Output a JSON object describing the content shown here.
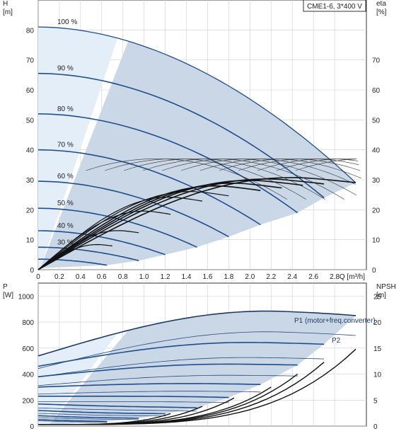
{
  "colors": {
    "curve": "#1f4e8c",
    "curve_thin": "#1e2f4a",
    "region": "#c9d7e6",
    "region_light": "#e4eef8",
    "grid": "#cfcfcf",
    "axis": "#333333"
  },
  "chart_data": [
    {
      "type": "line",
      "title": "CME1-6, 3*400 V",
      "ylabel_left": "H",
      "ylabel_left_unit": "[m]",
      "ylabel_right": "eta",
      "ylabel_right_unit": "[%]",
      "xlabel": "Q [m³/h]",
      "xlim": [
        0,
        3.1
      ],
      "ylim": [
        0,
        90
      ],
      "x_ticks": [
        "0",
        "0.2",
        "0.4",
        "0.6",
        "0.8",
        "1.0",
        "1.2",
        "1.4",
        "1.6",
        "1.8",
        "2.0",
        "2.2",
        "2.4",
        "2.6",
        "2.8"
      ],
      "y_ticks_left": [
        "0",
        "10",
        "20",
        "30",
        "40",
        "50",
        "60",
        "70",
        "80"
      ],
      "y_ticks_right": [
        "0",
        "10",
        "20",
        "30",
        "40",
        "50",
        "60",
        "70"
      ],
      "grid": true,
      "speed_curves": [
        {
          "name": "100 %",
          "h0": 81,
          "qmax": 3.0,
          "hend": 29
        },
        {
          "name": "90 %",
          "h0": 65.5,
          "qmax": 2.7,
          "hend": 24
        },
        {
          "name": "80 %",
          "h0": 52,
          "qmax": 2.45,
          "hend": 19
        },
        {
          "name": "70 %",
          "h0": 40,
          "qmax": 2.1,
          "hend": 15
        },
        {
          "name": "60 %",
          "h0": 29.5,
          "qmax": 1.8,
          "hend": 11
        },
        {
          "name": "50 %",
          "h0": 20.5,
          "qmax": 1.5,
          "hend": 7.5
        },
        {
          "name": "40 %",
          "h0": 13,
          "qmax": 1.2,
          "hend": 5
        },
        {
          "name": "30 %",
          "h0": 7.5,
          "qmax": 0.95,
          "hend": 3
        },
        {
          "name": "",
          "h0": 3.5,
          "qmax": 0.65,
          "hend": 1.5
        }
      ],
      "efficiency_curves": [
        {
          "qmax": 3.0,
          "peak": 33
        },
        {
          "qmax": 2.7,
          "peak": 32.5
        },
        {
          "qmax": 2.5,
          "peak": 32
        },
        {
          "qmax": 2.3,
          "peak": 31
        },
        {
          "qmax": 2.1,
          "peak": 30
        },
        {
          "qmax": 1.8,
          "peak": 28
        },
        {
          "qmax": 1.55,
          "peak": 26
        },
        {
          "qmax": 1.25,
          "peak": 21
        },
        {
          "qmax": 0.95,
          "peak": 14
        },
        {
          "qmax": 0.7,
          "peak": 9
        }
      ],
      "efficiency_envelope_peak": 37
    },
    {
      "type": "line",
      "ylabel_left": "P",
      "ylabel_left_unit": "[W]",
      "ylabel_right": "NPSH",
      "ylabel_right_unit": "[m]",
      "xlim": [
        0,
        3.1
      ],
      "ylim": [
        0,
        1100
      ],
      "ylim_right": [
        0,
        27.5
      ],
      "y_ticks_left": [
        "0",
        "200",
        "400",
        "600",
        "800",
        "1000"
      ],
      "y_ticks_right": [
        "0",
        "5",
        "10",
        "15",
        "20",
        "25"
      ],
      "grid": true,
      "series_labels": [
        "P1 (motor+freq.converter)",
        "P2"
      ],
      "power_curves": [
        {
          "p0": 540,
          "qmax": 3.0,
          "pend": 850,
          "peak": 900
        },
        {
          "p0": 460,
          "qmax": 2.7,
          "pend": 630,
          "peak": 650
        },
        {
          "p0": 380,
          "qmax": 2.45,
          "pend": 470,
          "peak": 480
        },
        {
          "p0": 300,
          "qmax": 2.1,
          "pend": 320,
          "peak": 330
        },
        {
          "p0": 230,
          "qmax": 1.8,
          "pend": 220,
          "peak": 230
        },
        {
          "p0": 170,
          "qmax": 1.5,
          "pend": 140,
          "peak": 150
        },
        {
          "p0": 120,
          "qmax": 1.2,
          "pend": 95,
          "peak": 100
        },
        {
          "p0": 80,
          "qmax": 0.95,
          "pend": 60,
          "peak": 65
        },
        {
          "p0": 50,
          "qmax": 0.65,
          "pend": 35,
          "peak": 40
        }
      ],
      "npsh_curves": [
        {
          "qmax": 3.0,
          "end": 14.5
        },
        {
          "qmax": 2.7,
          "end": 12
        },
        {
          "qmax": 2.45,
          "end": 9.7
        },
        {
          "qmax": 2.2,
          "end": 7.2
        },
        {
          "qmax": 1.85,
          "end": 5.1
        },
        {
          "qmax": 1.55,
          "end": 3.5
        },
        {
          "qmax": 1.25,
          "end": 2.1
        }
      ]
    }
  ]
}
